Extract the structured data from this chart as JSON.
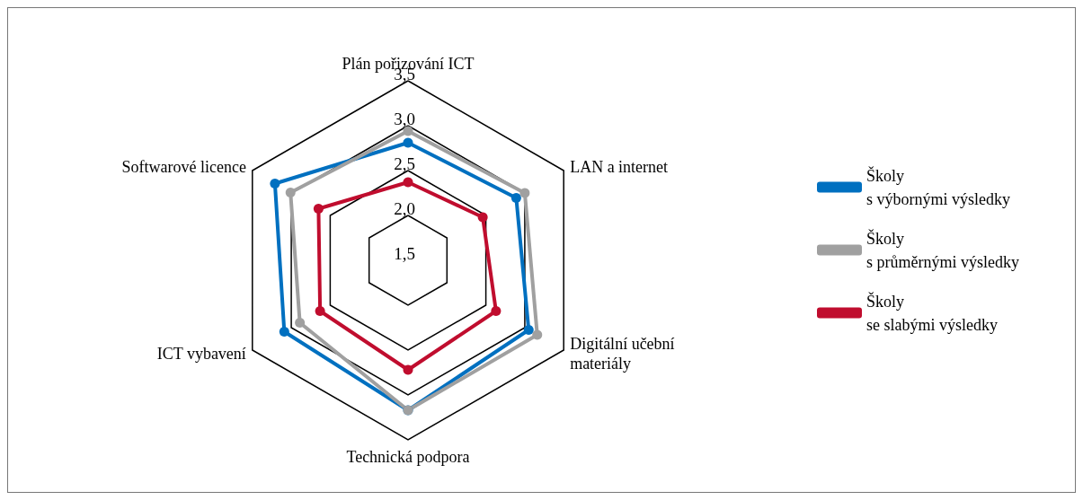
{
  "chart_data": {
    "type": "radar",
    "categories": [
      "Plán pořizování ICT",
      "LAN a internet",
      "Digitální učební\nmateriály",
      "Technická podpora",
      "ICT vybavení",
      "Softwarové licence"
    ],
    "ylim": [
      1.5,
      3.5
    ],
    "yticks": [
      {
        "value": 1.5,
        "label": "1,5"
      },
      {
        "value": 2.0,
        "label": "2,0"
      },
      {
        "value": 2.5,
        "label": "2,5"
      },
      {
        "value": 3.0,
        "label": "3,0"
      },
      {
        "value": 3.5,
        "label": "3,5"
      }
    ],
    "series": [
      {
        "name": "Školy\ns výbornými výsledky",
        "color": "#0070c0",
        "values": [
          2.81,
          2.89,
          3.05,
          3.17,
          3.09,
          3.21
        ]
      },
      {
        "name": "Školy\ns průměrnými výsledky",
        "color": "#a0a0a0",
        "values": [
          2.94,
          3.0,
          3.16,
          3.17,
          2.89,
          3.01
        ]
      },
      {
        "name": "Školy\nse slabými výsledky",
        "color": "#c00d2e",
        "values": [
          2.37,
          2.46,
          2.63,
          2.72,
          2.63,
          2.65
        ]
      }
    ],
    "grid": true,
    "legend": "right",
    "marker": "circle",
    "line_style": "solid"
  }
}
